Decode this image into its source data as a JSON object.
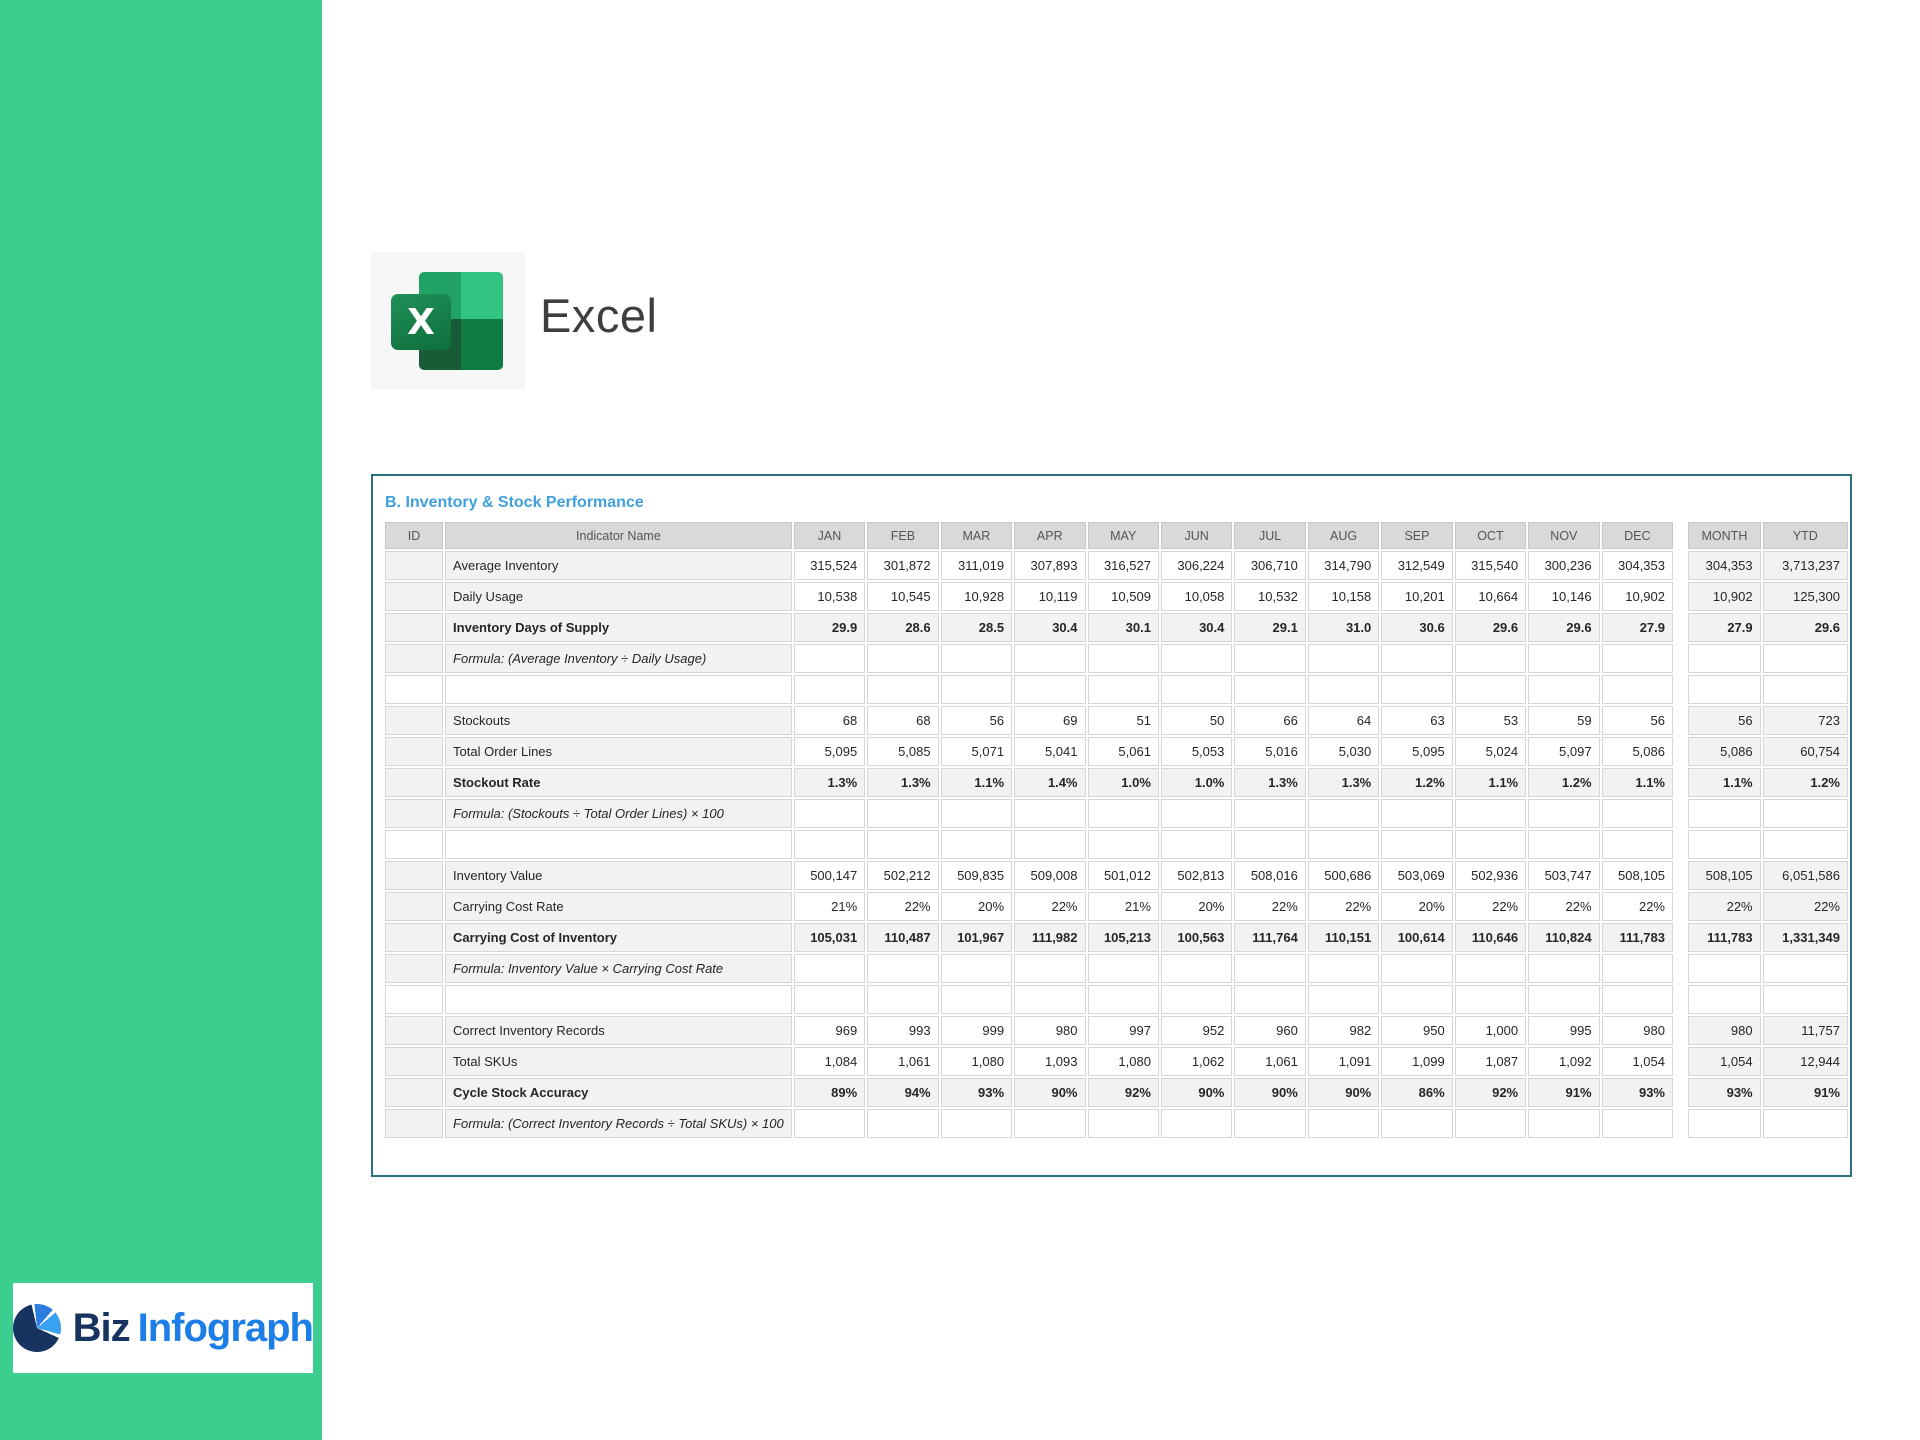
{
  "app": {
    "name": "Excel",
    "icon_letter": "X"
  },
  "colors": {
    "sidebar_green": "#3CCE8E",
    "title_blue": "#3FA0DC",
    "panel_border": "#2B7082",
    "header_bg": "#D9D9D9",
    "shaded_cell_bg": "#F2F2F2",
    "excel_green_mid": "#21A366",
    "excel_green_light": "#33C481",
    "excel_green_dark": "#185C37",
    "excel_green": "#107C41",
    "logo_navy": "#17335F",
    "logo_blue": "#1C7EE6"
  },
  "panel": {
    "title": "B. Inventory & Stock Performance",
    "columns": {
      "id": "ID",
      "indicator": "Indicator Name",
      "months": [
        "JAN",
        "FEB",
        "MAR",
        "APR",
        "MAY",
        "JUN",
        "JUL",
        "AUG",
        "SEP",
        "OCT",
        "NOV",
        "DEC"
      ],
      "month": "MONTH",
      "ytd": "YTD"
    },
    "rows": [
      {
        "type": "input",
        "label": "Average Inventory",
        "values": [
          "315,524",
          "301,872",
          "311,019",
          "307,893",
          "316,527",
          "306,224",
          "306,710",
          "314,790",
          "312,549",
          "315,540",
          "300,236",
          "304,353"
        ],
        "month": "304,353",
        "ytd": "3,713,237"
      },
      {
        "type": "input",
        "label": "Daily Usage",
        "values": [
          "10,538",
          "10,545",
          "10,928",
          "10,119",
          "10,509",
          "10,058",
          "10,532",
          "10,158",
          "10,201",
          "10,664",
          "10,146",
          "10,902"
        ],
        "month": "10,902",
        "ytd": "125,300"
      },
      {
        "type": "kpi",
        "label": "Inventory Days of Supply",
        "values": [
          "29.9",
          "28.6",
          "28.5",
          "30.4",
          "30.1",
          "30.4",
          "29.1",
          "31.0",
          "30.6",
          "29.6",
          "29.6",
          "27.9"
        ],
        "month": "27.9",
        "ytd": "29.6"
      },
      {
        "type": "formula",
        "label": "Formula: (Average Inventory ÷ Daily Usage)"
      },
      {
        "type": "empty",
        "label": ""
      },
      {
        "type": "input",
        "label": "Stockouts",
        "values": [
          "68",
          "68",
          "56",
          "69",
          "51",
          "50",
          "66",
          "64",
          "63",
          "53",
          "59",
          "56"
        ],
        "month": "56",
        "ytd": "723"
      },
      {
        "type": "input",
        "label": "Total Order Lines",
        "values": [
          "5,095",
          "5,085",
          "5,071",
          "5,041",
          "5,061",
          "5,053",
          "5,016",
          "5,030",
          "5,095",
          "5,024",
          "5,097",
          "5,086"
        ],
        "month": "5,086",
        "ytd": "60,754"
      },
      {
        "type": "kpi",
        "label": "Stockout Rate",
        "values": [
          "1.3%",
          "1.3%",
          "1.1%",
          "1.4%",
          "1.0%",
          "1.0%",
          "1.3%",
          "1.3%",
          "1.2%",
          "1.1%",
          "1.2%",
          "1.1%"
        ],
        "month": "1.1%",
        "ytd": "1.2%"
      },
      {
        "type": "formula",
        "label": "Formula: (Stockouts ÷ Total Order Lines) × 100"
      },
      {
        "type": "empty",
        "label": ""
      },
      {
        "type": "input",
        "label": "Inventory Value",
        "values": [
          "500,147",
          "502,212",
          "509,835",
          "509,008",
          "501,012",
          "502,813",
          "508,016",
          "500,686",
          "503,069",
          "502,936",
          "503,747",
          "508,105"
        ],
        "month": "508,105",
        "ytd": "6,051,586"
      },
      {
        "type": "input",
        "label": "Carrying Cost Rate",
        "values": [
          "21%",
          "22%",
          "20%",
          "22%",
          "21%",
          "20%",
          "22%",
          "22%",
          "20%",
          "22%",
          "22%",
          "22%"
        ],
        "month": "22%",
        "ytd": "22%"
      },
      {
        "type": "kpi",
        "label": "Carrying Cost of Inventory",
        "values": [
          "105,031",
          "110,487",
          "101,967",
          "111,982",
          "105,213",
          "100,563",
          "111,764",
          "110,151",
          "100,614",
          "110,646",
          "110,824",
          "111,783"
        ],
        "month": "111,783",
        "ytd": "1,331,349"
      },
      {
        "type": "formula",
        "label": "Formula: Inventory Value × Carrying Cost Rate"
      },
      {
        "type": "empty",
        "label": ""
      },
      {
        "type": "input",
        "label": "Correct Inventory Records",
        "values": [
          "969",
          "993",
          "999",
          "980",
          "997",
          "952",
          "960",
          "982",
          "950",
          "1,000",
          "995",
          "980"
        ],
        "month": "980",
        "ytd": "11,757"
      },
      {
        "type": "input",
        "label": "Total SKUs",
        "values": [
          "1,084",
          "1,061",
          "1,080",
          "1,093",
          "1,080",
          "1,062",
          "1,061",
          "1,091",
          "1,099",
          "1,087",
          "1,092",
          "1,054"
        ],
        "month": "1,054",
        "ytd": "12,944"
      },
      {
        "type": "kpi",
        "label": "Cycle Stock Accuracy",
        "values": [
          "89%",
          "94%",
          "93%",
          "90%",
          "92%",
          "90%",
          "90%",
          "90%",
          "86%",
          "92%",
          "91%",
          "93%"
        ],
        "month": "93%",
        "ytd": "91%"
      },
      {
        "type": "formula",
        "label": "Formula: (Correct Inventory Records ÷ Total SKUs) × 100"
      }
    ]
  },
  "footer_logo": {
    "text_primary": "Biz",
    "text_secondary": "Infograph"
  }
}
